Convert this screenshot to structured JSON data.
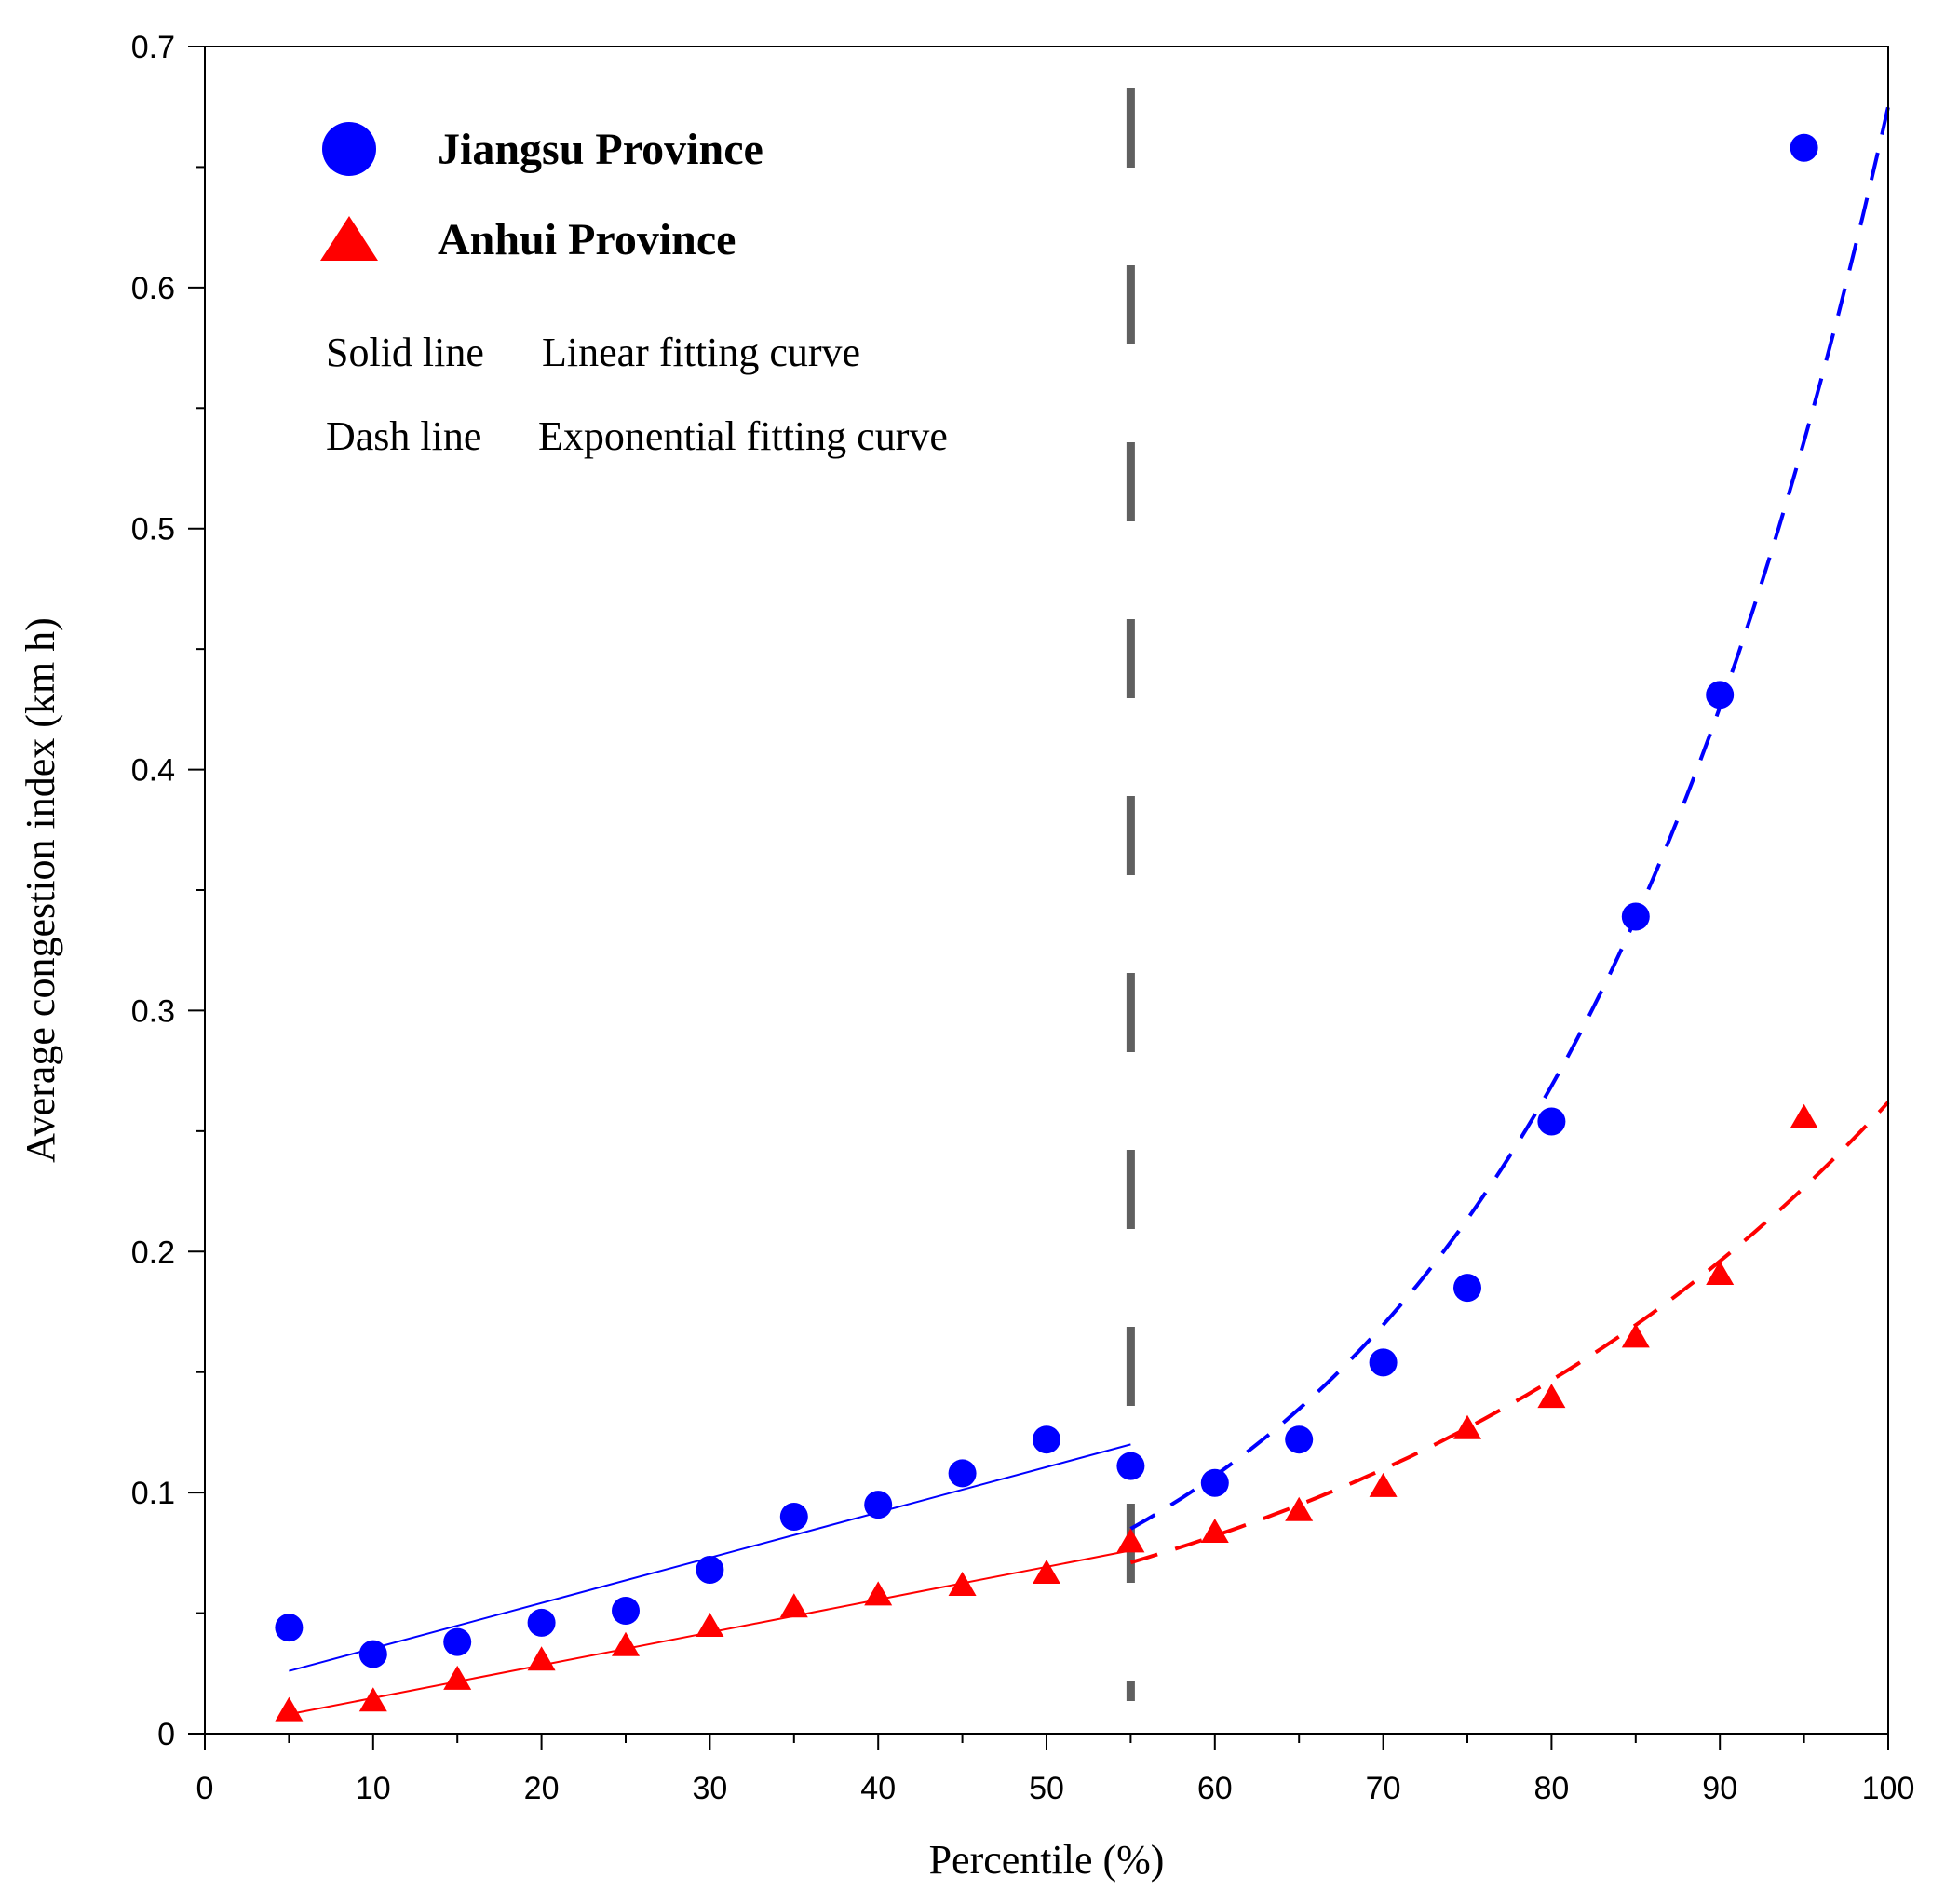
{
  "chart_data": {
    "type": "scatter",
    "title": "",
    "xlabel": "Percentile (%)",
    "ylabel": "Average congestion index  (km h)",
    "xlim": [
      0,
      100
    ],
    "ylim": [
      0,
      0.7
    ],
    "xticks": [
      0,
      10,
      20,
      30,
      40,
      50,
      60,
      70,
      80,
      90,
      100
    ],
    "xtick_labels": [
      "0",
      "10",
      "20",
      "30",
      "40",
      "50",
      "60",
      "70",
      "80",
      "90",
      "100"
    ],
    "yticks": [
      0,
      0.1,
      0.2,
      0.3,
      0.4,
      0.5,
      0.6,
      0.7
    ],
    "ytick_labels": [
      "0",
      "0.1",
      "0.2",
      "0.3",
      "0.4",
      "0.5",
      "0.6",
      "0.7"
    ],
    "threshold_x": 55,
    "threshold_color": "#606060",
    "legend": {
      "position": "top-left",
      "entries": [
        {
          "label": "Jiangsu Province",
          "marker": "circle",
          "color": "#0000ff"
        },
        {
          "label": "Anhui Province",
          "marker": "triangle",
          "color": "#ff0000"
        }
      ],
      "notes": [
        {
          "key": "Solid line",
          "value": "Linear fitting curve"
        },
        {
          "key": "Dash line",
          "value": "Exponential fitting curve"
        }
      ]
    },
    "series": [
      {
        "name": "Jiangsu Province",
        "marker": "circle",
        "color": "#0000ff",
        "x": [
          5,
          10,
          15,
          20,
          25,
          30,
          35,
          40,
          45,
          50,
          55,
          60,
          65,
          70,
          75,
          80,
          85,
          90,
          95
        ],
        "y": [
          0.044,
          0.033,
          0.038,
          0.046,
          0.051,
          0.068,
          0.09,
          0.095,
          0.108,
          0.122,
          0.111,
          0.104,
          0.122,
          0.154,
          0.185,
          0.254,
          0.339,
          0.431,
          0.658
        ],
        "linear_fit": {
          "x": [
            5,
            55
          ],
          "y": [
            0.026,
            0.12
          ]
        },
        "exp_fit": {
          "x_start": 55,
          "x_end": 100,
          "y_start": 0.085,
          "y_end": 0.675
        }
      },
      {
        "name": "Anhui Province",
        "marker": "triangle",
        "color": "#ff0000",
        "x": [
          5,
          10,
          15,
          20,
          25,
          30,
          35,
          40,
          45,
          50,
          55,
          60,
          65,
          70,
          75,
          80,
          85,
          90,
          95
        ],
        "y": [
          0.009,
          0.013,
          0.022,
          0.03,
          0.036,
          0.044,
          0.052,
          0.057,
          0.061,
          0.066,
          0.079,
          0.083,
          0.092,
          0.102,
          0.126,
          0.139,
          0.164,
          0.19,
          0.255
        ],
        "linear_fit": {
          "x": [
            5,
            55
          ],
          "y": [
            0.008,
            0.076
          ]
        },
        "exp_fit": {
          "x_start": 55,
          "x_end": 100,
          "y_start": 0.071,
          "y_end": 0.262
        }
      }
    ]
  }
}
